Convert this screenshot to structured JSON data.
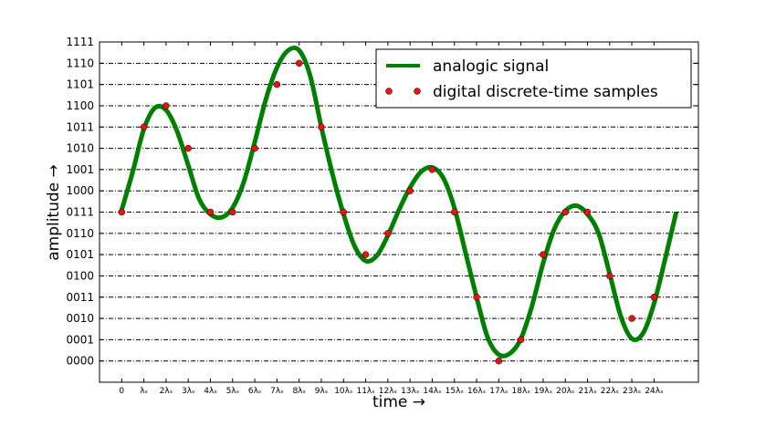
{
  "chart_data": {
    "type": "line",
    "title": "",
    "xlabel": "time →",
    "ylabel": "amplitude →",
    "grid": "horizontal dash-dot",
    "legend_position": "top-right",
    "x_tick_labels": [
      "0",
      "λₛ",
      "2λₛ",
      "3λₛ",
      "4λₛ",
      "5λₛ",
      "6λₛ",
      "7λₛ",
      "8λₛ",
      "9λₛ",
      "10λₛ",
      "11λₛ",
      "12λₛ",
      "13λₛ",
      "14λₛ",
      "15λₛ",
      "16λₛ",
      "17λₛ",
      "18λₛ",
      "19λₛ",
      "20λₛ",
      "21λₛ",
      "22λₛ",
      "23λₛ",
      "24λₛ"
    ],
    "y_tick_labels": [
      "0000",
      "0001",
      "0010",
      "0011",
      "0100",
      "0101",
      "0110",
      "0111",
      "1000",
      "1001",
      "1010",
      "1011",
      "1100",
      "1101",
      "1110",
      "1111"
    ],
    "xlim": [
      -1,
      26
    ],
    "ylim": [
      -1,
      15
    ],
    "series": [
      {
        "name": "analogic signal",
        "kind": "line",
        "color": "#008000",
        "x": [
          0,
          0.5,
          1,
          1.5,
          2,
          2.5,
          3,
          3.5,
          4,
          4.5,
          5,
          5.5,
          6,
          6.5,
          7,
          7.5,
          8,
          8.5,
          9,
          9.5,
          10,
          10.5,
          11,
          11.5,
          12,
          12.5,
          13,
          13.5,
          14,
          14.5,
          15,
          15.5,
          16,
          16.5,
          17,
          17.5,
          18,
          18.5,
          19,
          19.5,
          20,
          20.5,
          21,
          21.5,
          22,
          22.5,
          23,
          23.5,
          24,
          24.5,
          25
        ],
        "y": [
          7.1,
          8.9,
          10.9,
          11.9,
          11.8,
          10.8,
          9.2,
          7.6,
          6.9,
          6.75,
          7.2,
          8.4,
          10.3,
          12.3,
          13.8,
          14.6,
          14.6,
          13.4,
          11.0,
          8.8,
          6.9,
          5.4,
          4.7,
          4.95,
          5.9,
          7.1,
          8.15,
          8.9,
          9.1,
          8.6,
          7.2,
          5.1,
          3.0,
          1.1,
          0.3,
          0.35,
          1.05,
          2.6,
          4.6,
          6.2,
          7.05,
          7.3,
          6.9,
          6.0,
          4.1,
          2.1,
          1.05,
          1.3,
          2.7,
          4.8,
          7.0
        ]
      },
      {
        "name": "digital discrete-time samples",
        "kind": "scatter",
        "color": "#ee1111",
        "x": [
          0,
          1,
          2,
          3,
          4,
          5,
          6,
          7,
          8,
          9,
          10,
          11,
          12,
          13,
          14,
          15,
          16,
          17,
          18,
          19,
          20,
          21,
          22,
          23,
          24
        ],
        "y": [
          7,
          11,
          12,
          10,
          7,
          7,
          10,
          13,
          14,
          11,
          7,
          5,
          6,
          8,
          9,
          7,
          3,
          0,
          1,
          5,
          7,
          7,
          4,
          2,
          3
        ]
      }
    ]
  }
}
